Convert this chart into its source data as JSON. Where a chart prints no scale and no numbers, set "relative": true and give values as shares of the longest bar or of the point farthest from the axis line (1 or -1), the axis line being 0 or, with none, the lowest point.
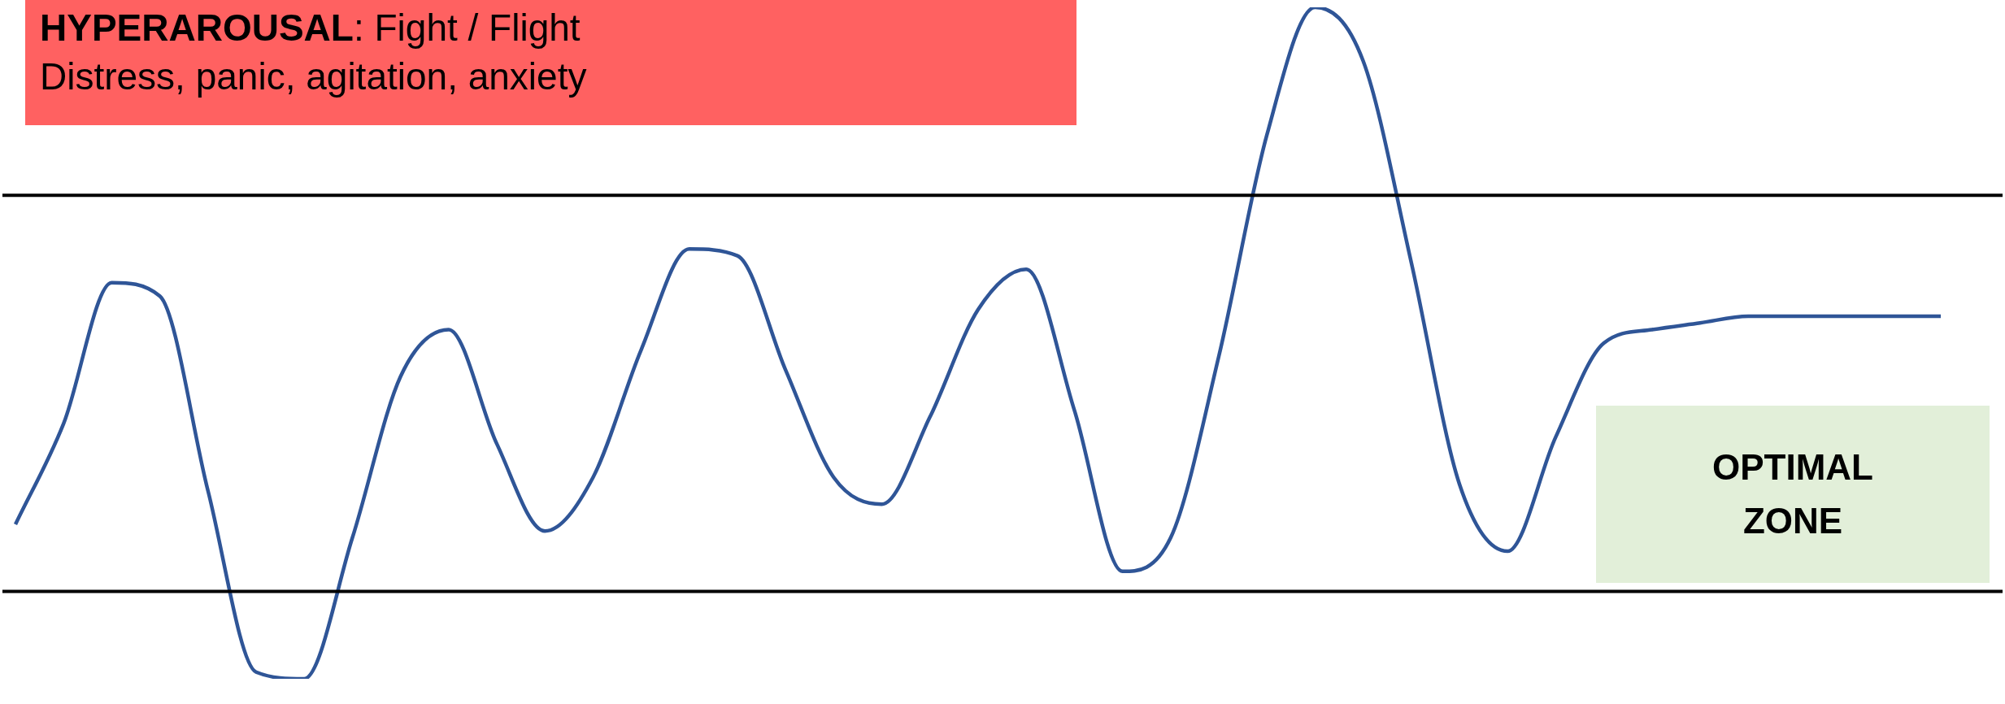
{
  "chart_data": {
    "type": "line",
    "relative": true,
    "legend": false,
    "marker": "none",
    "line_style": "solid",
    "categories": [
      null,
      null,
      null,
      null,
      null,
      null,
      null,
      null,
      null,
      null,
      null,
      null,
      null,
      null,
      null,
      null,
      null,
      null,
      null,
      null,
      null,
      null,
      null,
      null,
      null,
      null,
      null,
      null,
      null,
      null,
      null,
      null,
      null,
      null,
      null,
      null,
      null,
      null,
      null,
      null,
      null
    ],
    "series": [
      {
        "color": "#2f5597",
        "values": [
          0.23,
          0.38,
          0.59,
          0.57,
          0.28,
          0.01,
          0,
          0.21,
          0.45,
          0.52,
          0.35,
          0.22,
          0.3,
          0.49,
          0.64,
          0.63,
          0.46,
          0.3,
          0.26,
          0.39,
          0.55,
          0.61,
          0.4,
          0.16,
          0.21,
          0.48,
          0.81,
          1,
          0.92,
          0.62,
          0.29,
          0.19,
          0.36,
          0.5,
          0.52,
          0.53,
          0.54,
          0.54,
          0.54,
          0.54,
          0.54
        ]
      }
    ],
    "ref_lines": [
      {
        "axis": "y",
        "value": 0.72,
        "color": "#000000"
      },
      {
        "axis": "y",
        "value": 0.13,
        "color": "#000000"
      }
    ],
    "annotations": [
      "HYPERAROUSAL: Fight / Flight",
      "Distress, panic, agitation, anxiety",
      "OPTIMAL ZONE"
    ]
  }
}
